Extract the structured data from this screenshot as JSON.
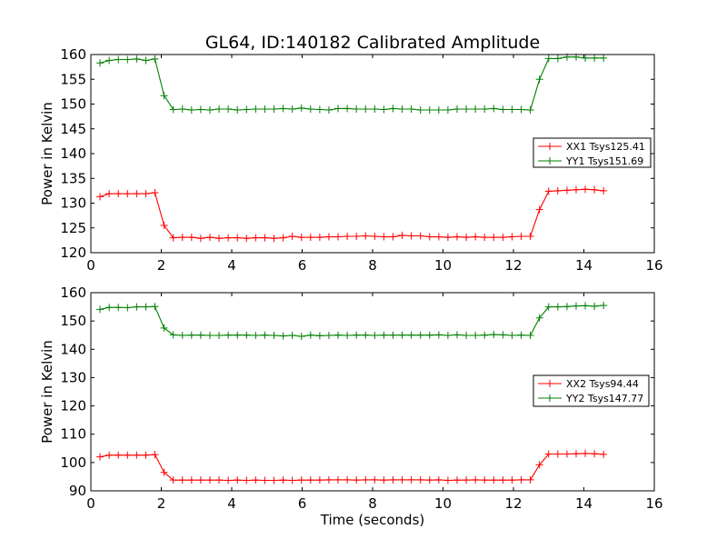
{
  "chart_data": [
    {
      "type": "line",
      "title": "GL64, ID:140182 Calibrated Amplitude",
      "xlabel": "",
      "ylabel": "Power in Kelvin",
      "xlim": [
        0,
        16
      ],
      "ylim": [
        120,
        160
      ],
      "xticks": [
        0,
        2,
        4,
        6,
        8,
        10,
        12,
        14,
        16
      ],
      "yticks": [
        120,
        125,
        130,
        135,
        140,
        145,
        150,
        155,
        160
      ],
      "xtick_labels": [
        "0",
        "2",
        "4",
        "6",
        "8",
        "10",
        "12",
        "14",
        "16"
      ],
      "ytick_labels": [
        "120",
        "125",
        "130",
        "135",
        "140",
        "145",
        "150",
        "155",
        "160"
      ],
      "legend_position": "right",
      "x": [
        0.26,
        0.52,
        0.78,
        1.04,
        1.3,
        1.56,
        1.82,
        2.08,
        2.34,
        2.6,
        2.86,
        3.12,
        3.38,
        3.64,
        3.9,
        4.16,
        4.42,
        4.68,
        4.94,
        5.2,
        5.46,
        5.72,
        5.98,
        6.24,
        6.5,
        6.76,
        7.02,
        7.28,
        7.54,
        7.8,
        8.06,
        8.32,
        8.58,
        8.84,
        9.1,
        9.36,
        9.62,
        9.88,
        10.14,
        10.4,
        10.66,
        10.92,
        11.18,
        11.44,
        11.7,
        11.96,
        12.22,
        12.48,
        12.74,
        13.0,
        13.26,
        13.52,
        13.78,
        14.04,
        14.3,
        14.56
      ],
      "series": [
        {
          "name": "XX1 Tsys125.41",
          "color": "#ff0000",
          "values": [
            131.3,
            131.9,
            131.9,
            131.9,
            131.9,
            131.9,
            132.1,
            125.5,
            123.0,
            123.1,
            123.1,
            122.9,
            123.1,
            122.9,
            123.0,
            123.0,
            122.9,
            123.0,
            123.0,
            122.9,
            123.0,
            123.3,
            123.1,
            123.1,
            123.1,
            123.2,
            123.2,
            123.3,
            123.3,
            123.4,
            123.3,
            123.2,
            123.2,
            123.5,
            123.4,
            123.4,
            123.2,
            123.2,
            123.1,
            123.2,
            123.1,
            123.2,
            123.1,
            123.1,
            123.1,
            123.2,
            123.3,
            123.3,
            128.7,
            132.4,
            132.5,
            132.6,
            132.7,
            132.8,
            132.7,
            132.5
          ]
        },
        {
          "name": "YY1 Tsys151.69",
          "color": "#008000",
          "values": [
            158.3,
            158.8,
            159.0,
            159.0,
            159.1,
            158.8,
            159.1,
            151.7,
            148.9,
            149.0,
            148.8,
            148.9,
            148.8,
            149.0,
            149.0,
            148.8,
            148.9,
            149.0,
            149.0,
            149.0,
            149.1,
            149.0,
            149.2,
            149.0,
            148.9,
            148.8,
            149.1,
            149.1,
            149.0,
            149.0,
            149.0,
            148.9,
            149.1,
            149.0,
            149.0,
            148.8,
            148.8,
            148.8,
            148.8,
            149.0,
            149.0,
            149.0,
            149.0,
            149.1,
            148.9,
            148.9,
            148.9,
            148.8,
            155.0,
            159.2,
            159.2,
            159.5,
            159.5,
            159.3,
            159.3,
            159.3
          ]
        }
      ]
    },
    {
      "type": "line",
      "title": "",
      "xlabel": "Time (seconds)",
      "ylabel": "Power in Kelvin",
      "xlim": [
        0,
        16
      ],
      "ylim": [
        90,
        160
      ],
      "xticks": [
        0,
        2,
        4,
        6,
        8,
        10,
        12,
        14,
        16
      ],
      "yticks": [
        90,
        100,
        110,
        120,
        130,
        140,
        150,
        160
      ],
      "xtick_labels": [
        "0",
        "2",
        "4",
        "6",
        "8",
        "10",
        "12",
        "14",
        "16"
      ],
      "ytick_labels": [
        "90",
        "100",
        "110",
        "120",
        "130",
        "140",
        "150",
        "160"
      ],
      "legend_position": "right",
      "x": [
        0.26,
        0.52,
        0.78,
        1.04,
        1.3,
        1.56,
        1.82,
        2.08,
        2.34,
        2.6,
        2.86,
        3.12,
        3.38,
        3.64,
        3.9,
        4.16,
        4.42,
        4.68,
        4.94,
        5.2,
        5.46,
        5.72,
        5.98,
        6.24,
        6.5,
        6.76,
        7.02,
        7.28,
        7.54,
        7.8,
        8.06,
        8.32,
        8.58,
        8.84,
        9.1,
        9.36,
        9.62,
        9.88,
        10.14,
        10.4,
        10.66,
        10.92,
        11.18,
        11.44,
        11.7,
        11.96,
        12.22,
        12.48,
        12.74,
        13.0,
        13.26,
        13.52,
        13.78,
        14.04,
        14.3,
        14.56
      ],
      "series": [
        {
          "name": "XX2 Tsys94.44",
          "color": "#ff0000",
          "values": [
            102.0,
            102.6,
            102.6,
            102.6,
            102.6,
            102.6,
            102.8,
            96.5,
            93.8,
            93.8,
            93.8,
            93.8,
            93.8,
            93.8,
            93.7,
            93.8,
            93.7,
            93.8,
            93.7,
            93.7,
            93.8,
            93.7,
            93.8,
            93.8,
            93.8,
            93.9,
            93.9,
            93.9,
            93.8,
            93.9,
            93.9,
            93.8,
            93.9,
            93.9,
            93.9,
            93.9,
            93.8,
            93.9,
            93.7,
            93.8,
            93.8,
            93.9,
            93.8,
            93.8,
            93.8,
            93.8,
            93.9,
            93.9,
            99.2,
            103.0,
            103.0,
            103.0,
            103.1,
            103.2,
            103.1,
            102.9
          ]
        },
        {
          "name": "YY2 Tsys147.77",
          "color": "#008000",
          "values": [
            154.1,
            154.8,
            154.8,
            154.7,
            155.0,
            155.0,
            155.1,
            147.5,
            145.1,
            144.9,
            145.0,
            145.0,
            144.9,
            144.9,
            145.0,
            145.0,
            145.0,
            144.9,
            145.0,
            144.9,
            144.7,
            144.9,
            144.6,
            145.0,
            144.8,
            144.9,
            145.0,
            144.9,
            145.0,
            145.0,
            144.9,
            145.0,
            145.0,
            145.0,
            145.0,
            145.0,
            145.0,
            145.1,
            144.9,
            145.1,
            144.9,
            144.9,
            145.0,
            145.2,
            145.1,
            144.9,
            145.0,
            144.9,
            151.1,
            155.0,
            155.0,
            155.1,
            155.3,
            155.4,
            155.2,
            155.5
          ]
        }
      ]
    }
  ]
}
